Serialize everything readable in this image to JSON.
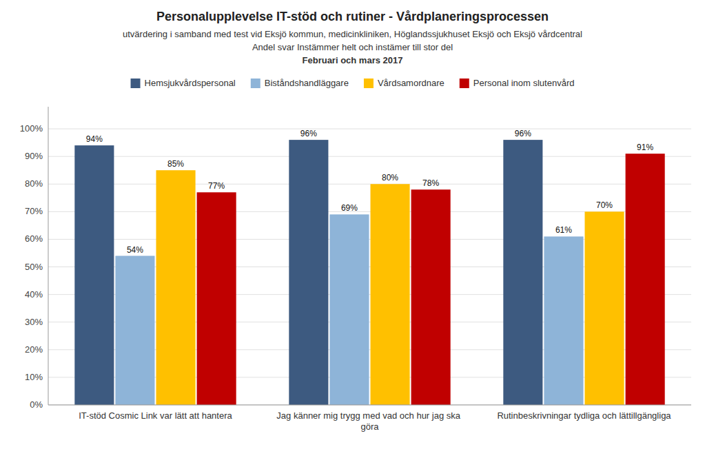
{
  "chart_data": {
    "type": "bar",
    "title": "Personalupplevelse IT-stöd och rutiner - Vårdplaneringsprocessen",
    "subtitle": [
      "utvärdering i samband med test vid Eksjö kommun, medicinkliniken,  Höglandssjukhuset Eksjö och Eksjö vårdcentral",
      "Andel svar Instämmer helt och instämer till stor del",
      "Februari och mars 2017"
    ],
    "categories": [
      "IT-stöd Cosmic Link var lätt att hantera",
      "Jag känner mig trygg med vad och hur jag ska göra",
      "Rutinbeskrivningar tydliga och lättillgängliga"
    ],
    "series": [
      {
        "name": "Hemsjukvårdspersonal",
        "color": "#3D5A80",
        "values": [
          0.94,
          0.96,
          0.96
        ],
        "value_labels": [
          "94%",
          "96%",
          "96%"
        ]
      },
      {
        "name": "Biståndshandläggare",
        "color": "#8EB4D8",
        "values": [
          0.54,
          0.69,
          0.61
        ],
        "value_labels": [
          "54%",
          "69%",
          "61%"
        ]
      },
      {
        "name": "Vårdsamordnare",
        "color": "#FFC000",
        "values": [
          0.85,
          0.8,
          0.7
        ],
        "value_labels": [
          "85%",
          "80%",
          "70%"
        ]
      },
      {
        "name": "Personal inom slutenvård",
        "color": "#C00000",
        "values": [
          0.77,
          0.78,
          0.91
        ],
        "value_labels": [
          "77%",
          "78%",
          "91%"
        ]
      }
    ],
    "ylim": [
      0,
      1.08
    ],
    "yticks": [
      {
        "value": 0,
        "label": "0%"
      },
      {
        "value": 0.1,
        "label": "10%"
      },
      {
        "value": 0.2,
        "label": "20%"
      },
      {
        "value": 0.3,
        "label": "30%"
      },
      {
        "value": 0.4,
        "label": "40%"
      },
      {
        "value": 0.5,
        "label": "50%"
      },
      {
        "value": 0.6,
        "label": "60%"
      },
      {
        "value": 0.7,
        "label": "70%"
      },
      {
        "value": 0.8,
        "label": "80%"
      },
      {
        "value": 0.9,
        "label": "90%"
      },
      {
        "value": 1.0,
        "label": "100%"
      }
    ],
    "grid": true,
    "legend": "top",
    "data_labels": true
  }
}
